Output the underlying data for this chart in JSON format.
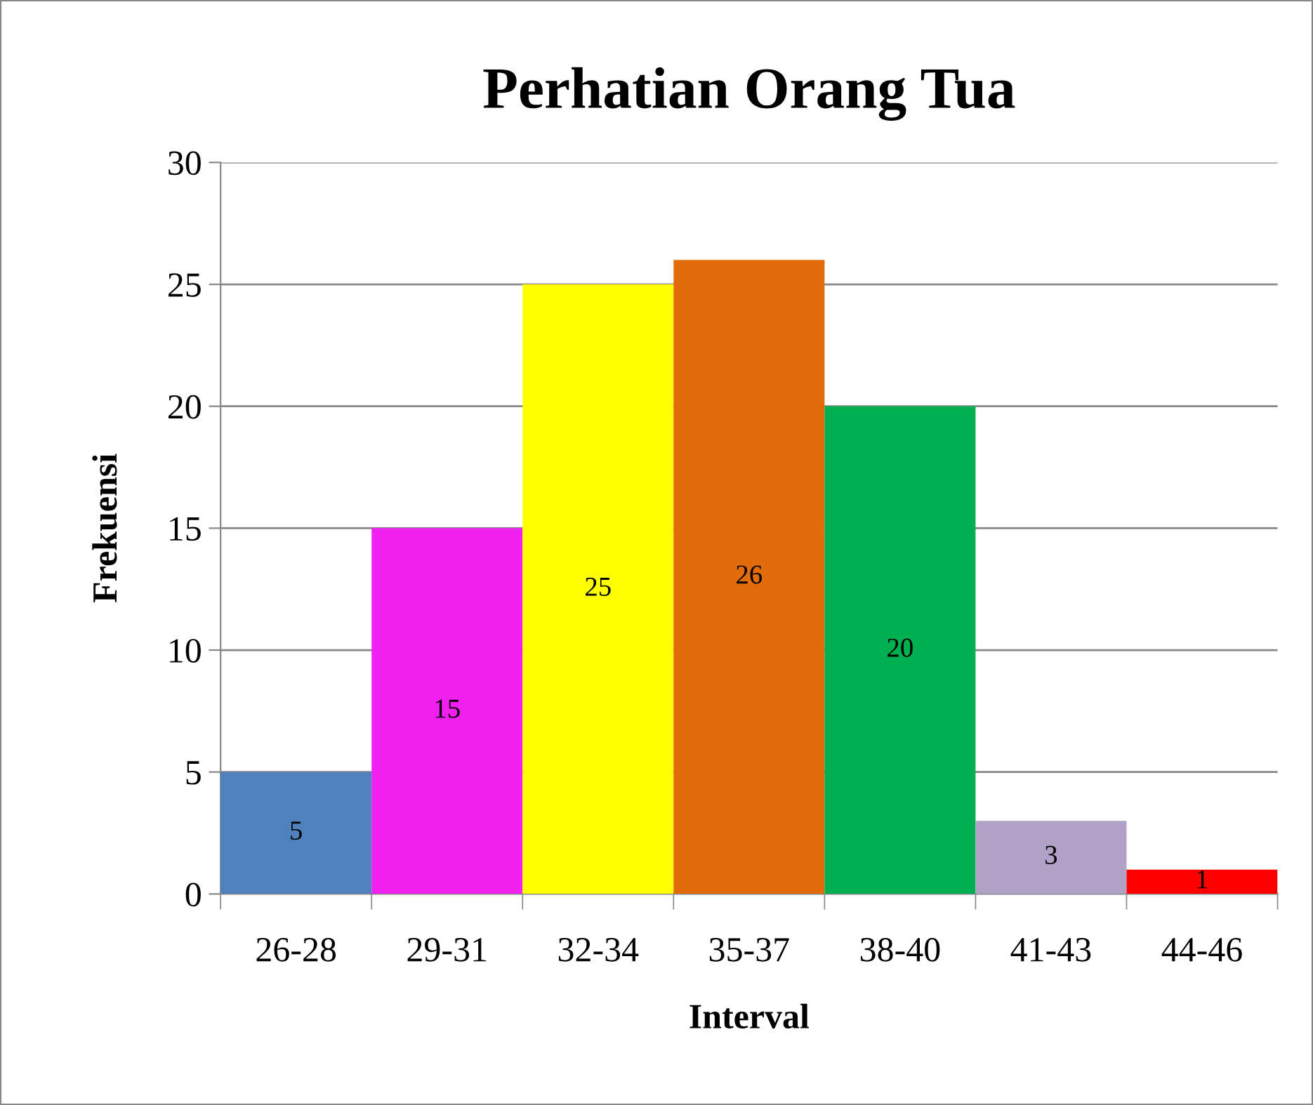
{
  "chart_data": {
    "type": "bar",
    "title": "Perhatian Orang Tua",
    "xlabel": "Interval",
    "ylabel": "Frekuensi",
    "categories": [
      "26-28",
      "29-31",
      "32-34",
      "35-37",
      "38-40",
      "41-43",
      "44-46"
    ],
    "values": [
      5,
      15,
      25,
      26,
      20,
      3,
      1
    ],
    "colors": [
      "#4f81bd",
      "#f020f0",
      "#ffff00",
      "#e36c0a",
      "#00b050",
      "#b2a1c7",
      "#ff0000"
    ],
    "ylim": [
      0,
      30
    ],
    "yticks": [
      0,
      5,
      10,
      15,
      20,
      25,
      30
    ],
    "grid": "y",
    "data_labels": true
  }
}
